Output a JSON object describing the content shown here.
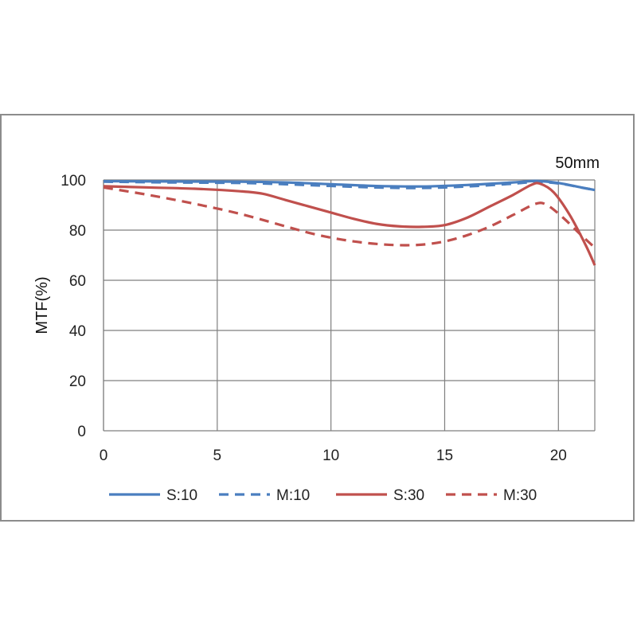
{
  "chart_data": {
    "type": "line",
    "title": "50mm",
    "xlabel": "",
    "ylabel": "MTF(%)",
    "xlim": [
      0,
      21.6
    ],
    "ylim": [
      0,
      100
    ],
    "xticks": [
      0,
      5,
      10,
      15,
      20
    ],
    "yticks": [
      0,
      20,
      40,
      60,
      80,
      100
    ],
    "grid": true,
    "legend_position": "bottom",
    "series": [
      {
        "name": "S:10",
        "color": "#4a7ebf",
        "dash": "solid",
        "points": [
          [
            0,
            99.5
          ],
          [
            3,
            99.4
          ],
          [
            6,
            99.3
          ],
          [
            8,
            99.0
          ],
          [
            10,
            98.3
          ],
          [
            12,
            97.6
          ],
          [
            14,
            97.4
          ],
          [
            16,
            98.0
          ],
          [
            18,
            99.0
          ],
          [
            19,
            99.6
          ],
          [
            20,
            98.8
          ],
          [
            21,
            97.0
          ],
          [
            21.6,
            96.0
          ]
        ]
      },
      {
        "name": "M:10",
        "color": "#4a7ebf",
        "dash": "dashed",
        "points": [
          [
            0,
            99.3
          ],
          [
            3,
            99.0
          ],
          [
            6,
            98.8
          ],
          [
            8,
            98.3
          ],
          [
            10,
            97.6
          ],
          [
            12,
            97.0
          ],
          [
            14,
            96.8
          ],
          [
            16,
            97.4
          ],
          [
            18,
            98.5
          ],
          [
            19,
            99.2
          ],
          [
            20,
            98.6
          ],
          [
            21,
            97.0
          ],
          [
            21.6,
            96.0
          ]
        ]
      },
      {
        "name": "S:30",
        "color": "#c0504d",
        "dash": "solid",
        "points": [
          [
            0,
            97.5
          ],
          [
            2,
            97.0
          ],
          [
            4,
            96.5
          ],
          [
            6,
            95.5
          ],
          [
            7,
            94.5
          ],
          [
            8,
            92.0
          ],
          [
            9,
            89.5
          ],
          [
            10,
            87.0
          ],
          [
            11,
            84.5
          ],
          [
            12,
            82.5
          ],
          [
            13,
            81.5
          ],
          [
            14,
            81.3
          ],
          [
            15,
            82.0
          ],
          [
            16,
            85.0
          ],
          [
            17,
            89.5
          ],
          [
            18,
            94.0
          ],
          [
            18.8,
            98.0
          ],
          [
            19.2,
            98.5
          ],
          [
            19.8,
            95.0
          ],
          [
            20.5,
            86.0
          ],
          [
            21.2,
            74.0
          ],
          [
            21.6,
            66.0
          ]
        ]
      },
      {
        "name": "M:30",
        "color": "#c0504d",
        "dash": "dashed",
        "points": [
          [
            0,
            97.0
          ],
          [
            2,
            94.0
          ],
          [
            4,
            90.5
          ],
          [
            6,
            86.5
          ],
          [
            8,
            81.5
          ],
          [
            9,
            79.0
          ],
          [
            10,
            77.0
          ],
          [
            11,
            75.5
          ],
          [
            12,
            74.5
          ],
          [
            13,
            74.0
          ],
          [
            14,
            74.2
          ],
          [
            15,
            75.5
          ],
          [
            16,
            78.0
          ],
          [
            17,
            81.5
          ],
          [
            18,
            86.0
          ],
          [
            19,
            90.5
          ],
          [
            19.5,
            90.0
          ],
          [
            20.2,
            85.0
          ],
          [
            21,
            78.0
          ],
          [
            21.6,
            73.0
          ]
        ]
      }
    ]
  }
}
